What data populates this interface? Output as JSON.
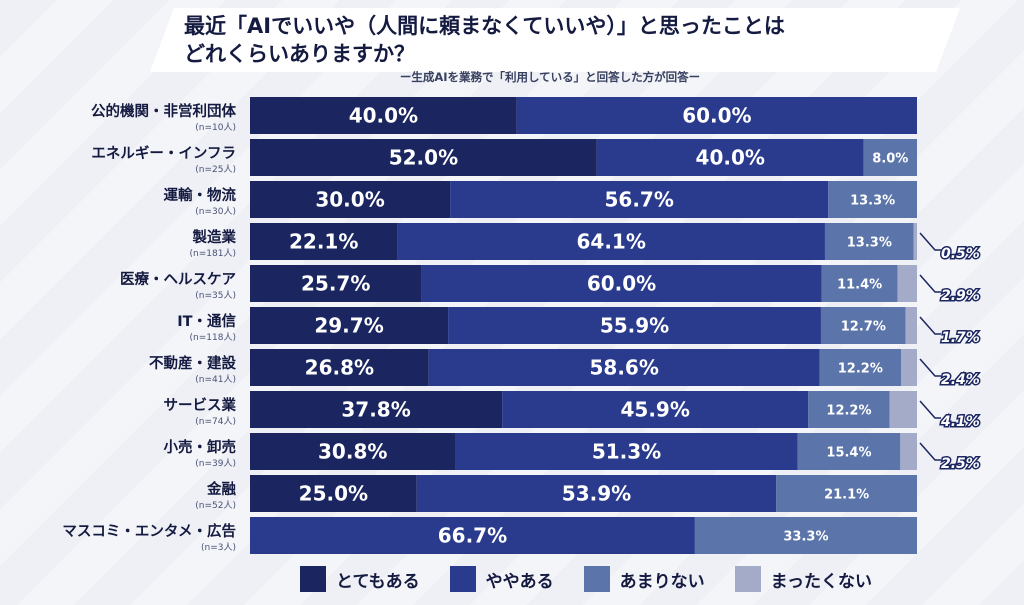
{
  "title_line1": "最近「AIでいいや（人間に頼まなくていいや）」と思ったことは",
  "title_line2": "どれくらいありますか？",
  "subtitle": "ー生成AIを業務で「利用している」と回答した方が回答ー",
  "colors": {
    "very": "#1b2660",
    "somewhat": "#2a3b8e",
    "not_much": "#5b75ab",
    "not_at_all": "#a3abc8"
  },
  "legend": [
    {
      "label": "とてもある",
      "color": "#1b2660"
    },
    {
      "label": "ややある",
      "color": "#2a3b8e"
    },
    {
      "label": "あまりない",
      "color": "#5b75ab"
    },
    {
      "label": "まったくない",
      "color": "#a3abc8"
    }
  ],
  "chart_data": {
    "type": "bar",
    "orientation": "horizontal-stacked-100",
    "categories": [
      {
        "label": "公的機関・非営利団体",
        "n": "(n=10人)"
      },
      {
        "label": "エネルギー・インフラ",
        "n": "(n=25人)"
      },
      {
        "label": "運輸・物流",
        "n": "(n=30人)"
      },
      {
        "label": "製造業",
        "n": "(n=181人)"
      },
      {
        "label": "医療・ヘルスケア",
        "n": "(n=35人)"
      },
      {
        "label": "IT・通信",
        "n": "(n=118人)"
      },
      {
        "label": "不動産・建設",
        "n": "(n=41人)"
      },
      {
        "label": "サービス業",
        "n": "(n=74人)"
      },
      {
        "label": "小売・卸売",
        "n": "(n=39人)"
      },
      {
        "label": "金融",
        "n": "(n=52人)"
      },
      {
        "label": "マスコミ・エンタメ・広告",
        "n": "(n=3人)"
      }
    ],
    "series": [
      {
        "name": "とてもある",
        "values": [
          40.0,
          52.0,
          30.0,
          22.1,
          25.7,
          29.7,
          26.8,
          37.8,
          30.8,
          25.0,
          0
        ]
      },
      {
        "name": "ややある",
        "values": [
          60.0,
          40.0,
          56.7,
          64.1,
          60.0,
          55.9,
          58.6,
          45.9,
          51.3,
          53.9,
          66.7
        ]
      },
      {
        "name": "あまりない",
        "values": [
          0,
          8.0,
          13.3,
          13.3,
          11.4,
          12.7,
          12.2,
          12.2,
          15.4,
          21.1,
          33.3
        ]
      },
      {
        "name": "まったくない",
        "values": [
          0,
          0,
          0,
          0.5,
          2.9,
          1.7,
          2.4,
          4.1,
          2.5,
          0,
          0
        ]
      }
    ],
    "value_labels": [
      [
        "40.0%",
        "60.0%",
        "",
        ""
      ],
      [
        "52.0%",
        "40.0%",
        "8.0%",
        ""
      ],
      [
        "30.0%",
        "56.7%",
        "13.3%",
        ""
      ],
      [
        "22.1%",
        "64.1%",
        "13.3%",
        "0.5%"
      ],
      [
        "25.7%",
        "60.0%",
        "11.4%",
        "2.9%"
      ],
      [
        "29.7%",
        "55.9%",
        "12.7%",
        "1.7%"
      ],
      [
        "26.8%",
        "58.6%",
        "12.2%",
        "2.4%"
      ],
      [
        "37.8%",
        "45.9%",
        "12.2%",
        "4.1%"
      ],
      [
        "30.8%",
        "51.3%",
        "15.4%",
        "2.5%"
      ],
      [
        "25.0%",
        "53.9%",
        "21.1%",
        ""
      ],
      [
        "",
        "66.7%",
        "33.3%",
        ""
      ]
    ],
    "unit": "%",
    "xlim": [
      0,
      100
    ],
    "legend_position": "bottom"
  }
}
